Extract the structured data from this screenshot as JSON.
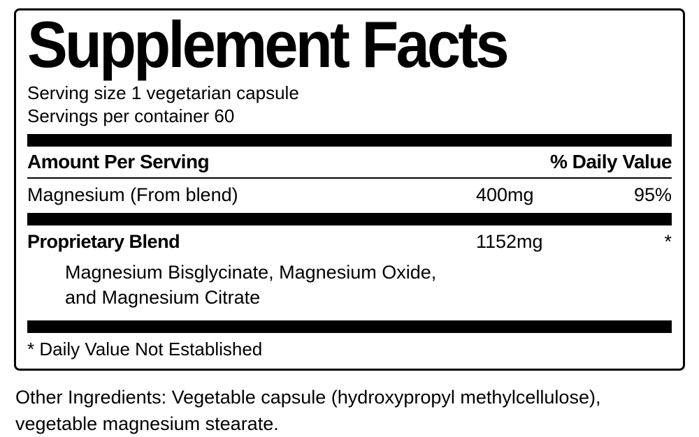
{
  "title": "Supplement Facts",
  "serving_size": "Serving size 1 vegetarian capsule",
  "servings_per_container": "Servings per container 60",
  "header": {
    "amount": "Amount Per Serving",
    "dv": "% Daily Value"
  },
  "rows": [
    {
      "name": "Magnesium (From blend)",
      "amount": "400mg",
      "dv": "95%"
    }
  ],
  "blend": {
    "name": "Proprietary Blend",
    "amount": "1152mg",
    "dv": "*",
    "sub_line1": "Magnesium Bisglycinate, Magnesium Oxide,",
    "sub_line2": "and Magnesium Citrate"
  },
  "footnote": "* Daily Value Not Established",
  "other_line1": "Other Ingredients: Vegetable capsule (hydroxypropyl methylcellulose),",
  "other_line2": "vegetable magnesium stearate."
}
